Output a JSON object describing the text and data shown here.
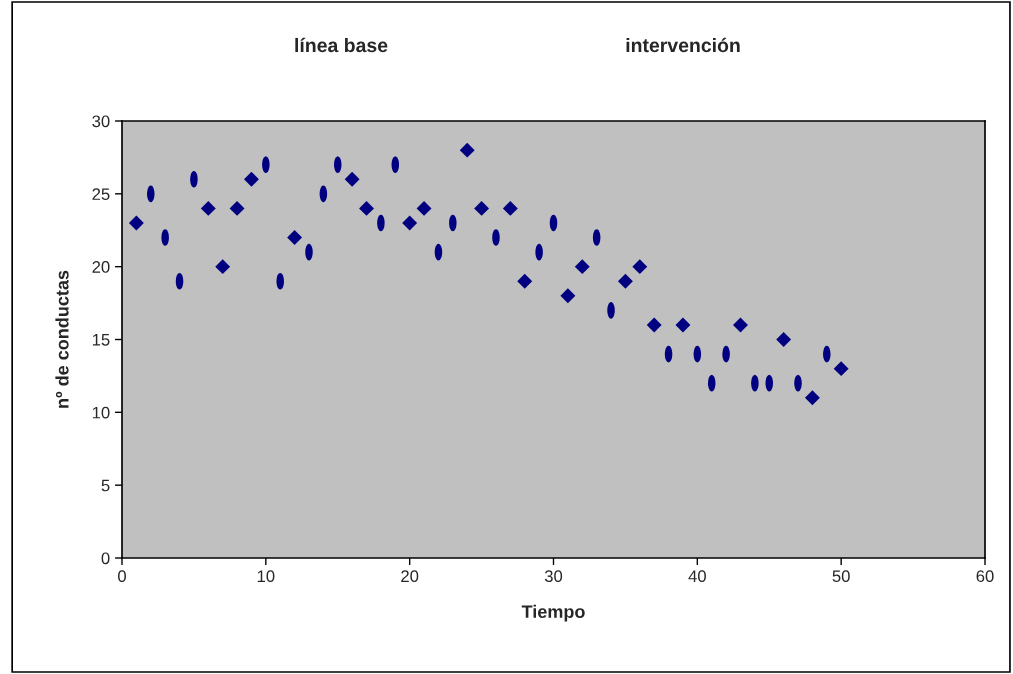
{
  "chart_data": {
    "type": "scatter",
    "xlabel": "Tiempo",
    "ylabel": "nº de conductas",
    "annotations": [
      "línea base",
      "intervención"
    ],
    "xlim": [
      0,
      60
    ],
    "xticks": [
      0,
      10,
      20,
      30,
      40,
      50,
      60
    ],
    "ylim": [
      0,
      30
    ],
    "yticks": [
      0,
      5,
      10,
      15,
      20,
      25,
      30
    ],
    "grid": false,
    "series": [
      {
        "color": "#000080",
        "marker": "diamond",
        "x": [
          1,
          6,
          7,
          8,
          9,
          12,
          16,
          17,
          20,
          21,
          24,
          25,
          27,
          28,
          31,
          32,
          35,
          36,
          37,
          39,
          43,
          46,
          48,
          50
        ],
        "values": [
          23,
          24,
          20,
          24,
          26,
          22,
          26,
          24,
          23,
          24,
          28,
          24,
          24,
          19,
          18,
          20,
          19,
          20,
          16,
          16,
          16,
          15,
          11,
          13
        ]
      },
      {
        "color": "#000080",
        "x": [
          2,
          3,
          4,
          5,
          10,
          11,
          13,
          14,
          15,
          18,
          19,
          22,
          23,
          26,
          29,
          30,
          33,
          34,
          38,
          40,
          41,
          42,
          44,
          45,
          47,
          49
        ],
        "values": [
          25,
          22,
          19,
          26,
          27,
          19,
          21,
          25,
          27,
          23,
          27,
          21,
          23,
          22,
          21,
          23,
          22,
          17,
          14,
          14,
          12,
          14,
          12,
          12,
          12,
          14
        ]
      }
    ]
  }
}
